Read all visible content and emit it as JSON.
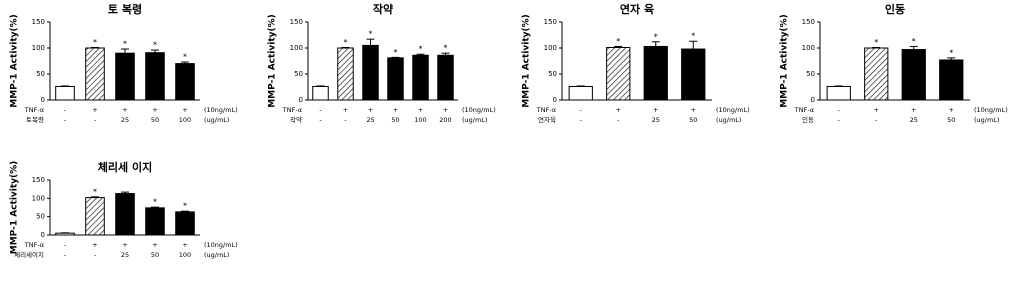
{
  "chart_data": [
    {
      "type": "bar",
      "title": "토 복령",
      "y_label": "MMP-1 Activity(%)",
      "values": [
        26,
        100,
        90,
        91,
        70
      ],
      "errors": [
        1,
        1,
        8,
        5,
        3
      ],
      "annotations": [
        null,
        "*",
        "*",
        "*",
        "*"
      ],
      "fills": [
        "white",
        "hatch",
        "black",
        "black",
        "black"
      ],
      "conditions": [
        {
          "label": "TNF-α",
          "values": [
            "-",
            "+",
            "+",
            "+",
            "+"
          ],
          "unit": "(10ng/mL)"
        },
        {
          "label": "토복령",
          "values": [
            "-",
            "-",
            "25",
            "50",
            "100"
          ],
          "unit": "(ug/mL)"
        }
      ],
      "ylim": [
        0,
        150
      ],
      "yticks": [
        0,
        50,
        100,
        150
      ]
    },
    {
      "type": "bar",
      "title": "작약",
      "y_label": "MMP-1 Activity(%)",
      "values": [
        26,
        100,
        105,
        81,
        86,
        86
      ],
      "errors": [
        1,
        1,
        12,
        1,
        2,
        4
      ],
      "annotations": [
        null,
        "*",
        "*",
        "*",
        "*",
        "*"
      ],
      "fills": [
        "white",
        "hatch",
        "black",
        "black",
        "black",
        "black"
      ],
      "conditions": [
        {
          "label": "TNF-α",
          "values": [
            "-",
            "+",
            "+",
            "+",
            "+",
            "+"
          ],
          "unit": "(10ng/mL)"
        },
        {
          "label": "작약",
          "values": [
            "-",
            "-",
            "25",
            "50",
            "100",
            "200"
          ],
          "unit": "(ug/mL)"
        }
      ],
      "ylim": [
        0,
        150
      ],
      "yticks": [
        0,
        50,
        100,
        150
      ]
    },
    {
      "type": "bar",
      "title": "연자 육",
      "y_label": "MMP-1 Activity(%)",
      "values": [
        26,
        101,
        103,
        98
      ],
      "errors": [
        1,
        2,
        9,
        15
      ],
      "annotations": [
        null,
        "*",
        "*",
        "*"
      ],
      "fills": [
        "white",
        "hatch",
        "black",
        "black"
      ],
      "conditions": [
        {
          "label": "TNF-α",
          "values": [
            "-",
            "+",
            "+",
            "+"
          ],
          "unit": "(10ng/mL)"
        },
        {
          "label": "연자육",
          "values": [
            "-",
            "-",
            "25",
            "50"
          ],
          "unit": "(ug/mL)"
        }
      ],
      "ylim": [
        0,
        150
      ],
      "yticks": [
        0,
        50,
        100,
        150
      ]
    },
    {
      "type": "bar",
      "title": "인동",
      "y_label": "MMP-1 Activity(%)",
      "values": [
        26,
        100,
        97,
        77
      ],
      "errors": [
        1,
        1,
        6,
        4
      ],
      "annotations": [
        null,
        "*",
        "*",
        "*"
      ],
      "fills": [
        "white",
        "hatch",
        "black",
        "black"
      ],
      "conditions": [
        {
          "label": "TNF-α",
          "values": [
            "-",
            "+",
            "+",
            "+"
          ],
          "unit": "(10ng/mL)"
        },
        {
          "label": "인동",
          "values": [
            "-",
            "-",
            "25",
            "50"
          ],
          "unit": "(ug/mL)"
        }
      ],
      "ylim": [
        0,
        150
      ],
      "yticks": [
        0,
        50,
        100,
        150
      ]
    },
    {
      "type": "bar",
      "title": "체리세 이지",
      "y_label": "MMP-1 Activity(%)",
      "values": [
        5,
        102,
        113,
        74,
        63
      ],
      "errors": [
        1,
        2,
        4,
        2,
        2
      ],
      "annotations": [
        null,
        "*",
        null,
        "*",
        "*"
      ],
      "fills": [
        "white",
        "hatch",
        "black",
        "black",
        "black"
      ],
      "conditions": [
        {
          "label": "TNF-α",
          "values": [
            "-",
            "+",
            "+",
            "+",
            "+"
          ],
          "unit": "(10ng/mL)"
        },
        {
          "label": "체리세이지",
          "values": [
            "-",
            "-",
            "25",
            "50",
            "100"
          ],
          "unit": "(ug/mL)"
        }
      ],
      "ylim": [
        0,
        150
      ],
      "yticks": [
        0,
        50,
        100,
        150
      ]
    }
  ]
}
